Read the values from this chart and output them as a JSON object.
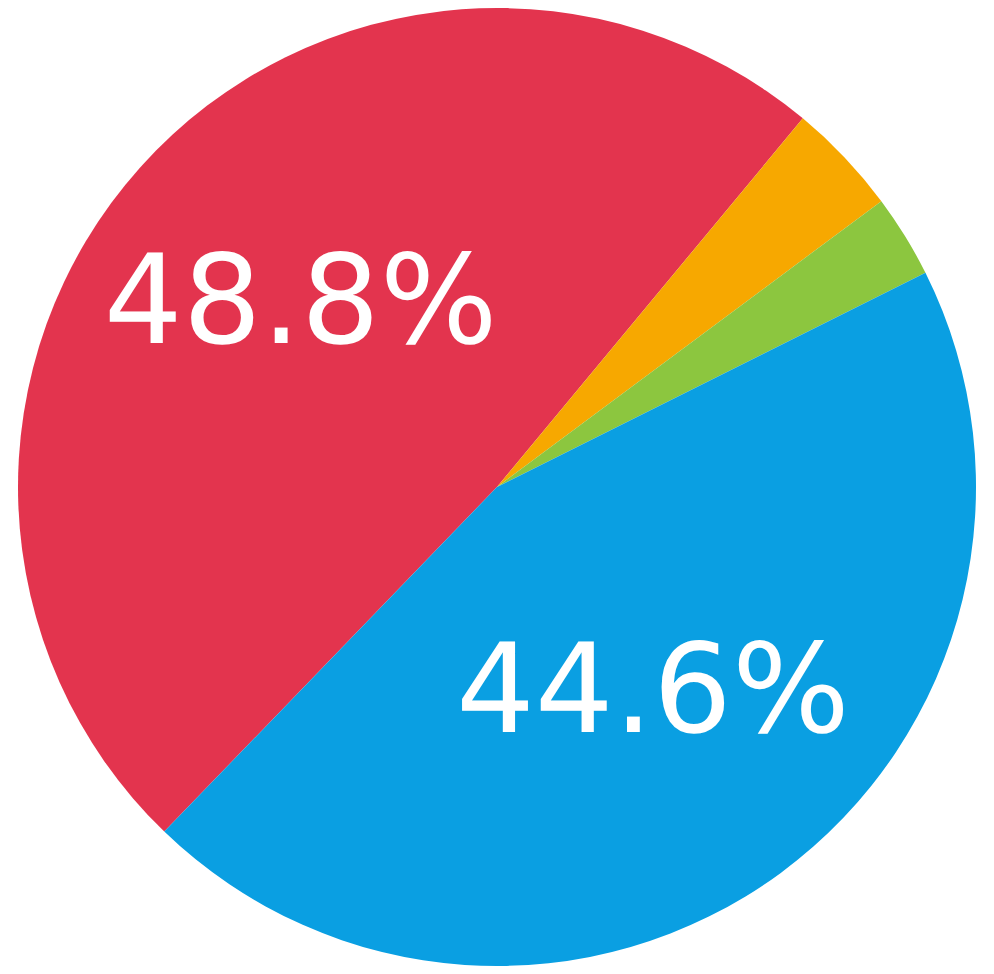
{
  "chart_data": {
    "type": "pie",
    "categories": [
      null,
      null,
      null,
      null
    ],
    "values": [
      48.8,
      3.8,
      2.8,
      44.6
    ],
    "colors": [
      "#e3344e",
      "#f7a800",
      "#8cc63f",
      "#0a9fe2"
    ],
    "value_labels": [
      "48.8%",
      null,
      null,
      "44.6%"
    ],
    "legend": false
  }
}
